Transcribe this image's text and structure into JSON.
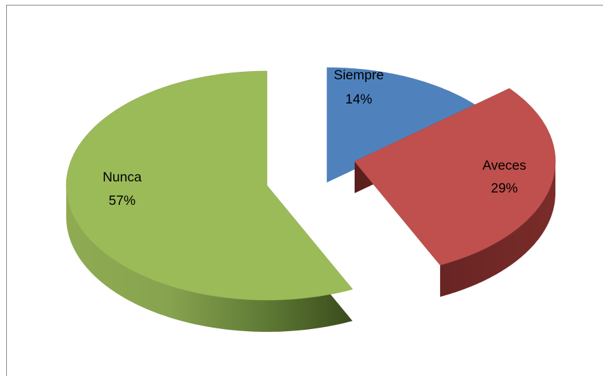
{
  "chart_data": {
    "type": "pie",
    "style": "3d-exploded",
    "title": "",
    "legend": "none",
    "slices": [
      {
        "name": "Siempre",
        "value": 14,
        "label": "14%",
        "color": "#4f81bd"
      },
      {
        "name": "Aveces",
        "value": 29,
        "label": "29%",
        "color": "#c0504d"
      },
      {
        "name": "Nunca",
        "value": 57,
        "label": "57%",
        "color": "#9bbb59"
      }
    ]
  }
}
